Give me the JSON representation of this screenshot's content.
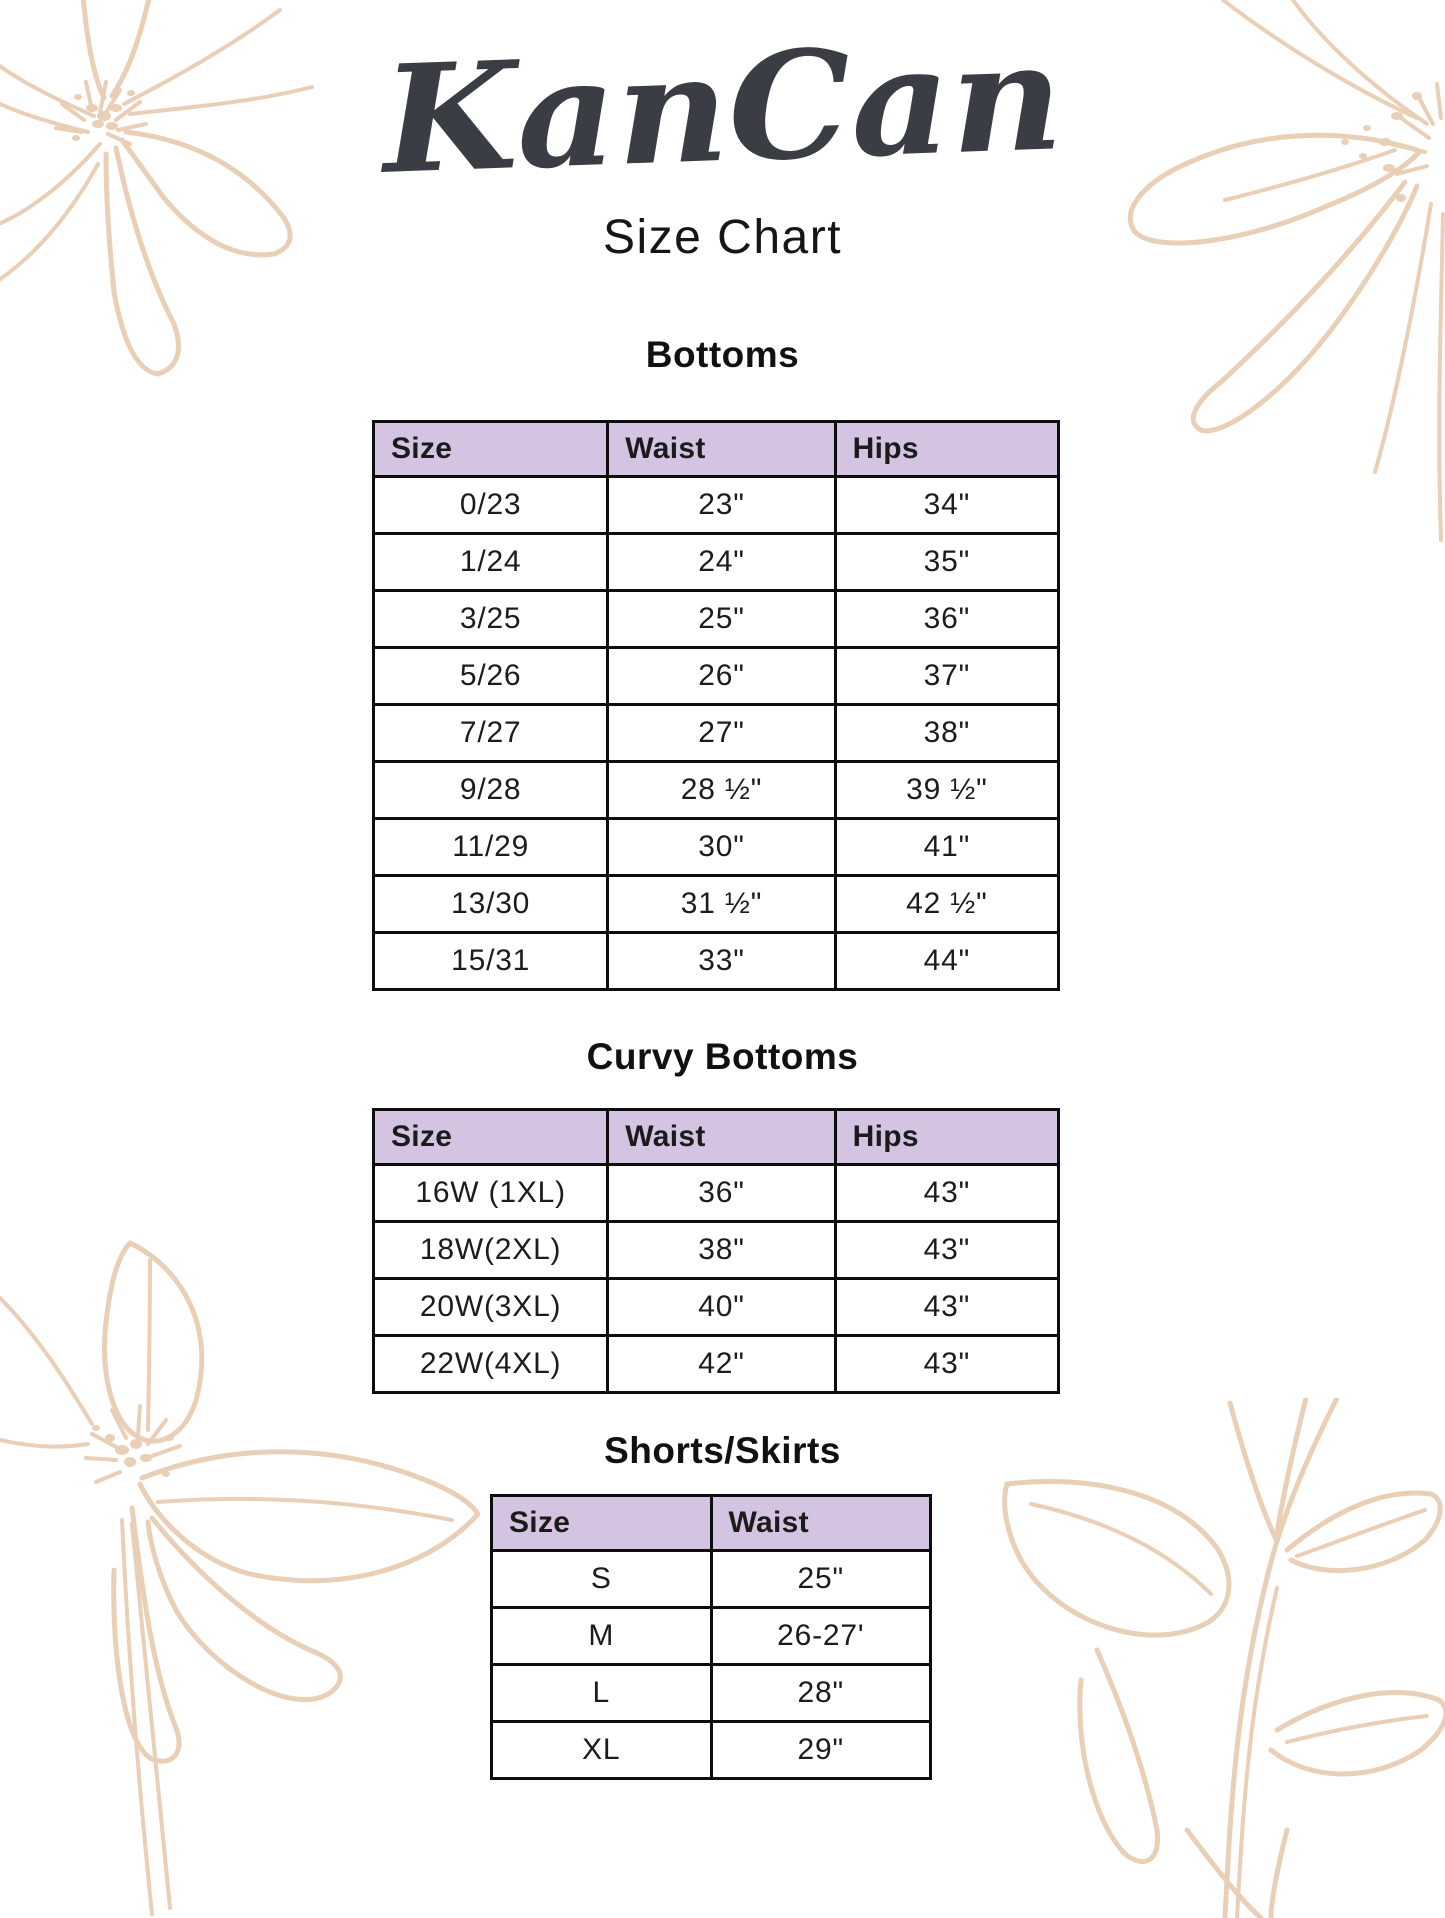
{
  "brand": "KanCan",
  "page_title": "Size Chart",
  "colors": {
    "header_bg": "#d4c4e1",
    "table_border": "#0d0d0d",
    "floral_line": "#e9cfb6",
    "logo_ink": "#3a3d44"
  },
  "tables": [
    {
      "title": "Bottoms",
      "columns": [
        "Size",
        "Waist",
        "Hips"
      ],
      "rows": [
        [
          "0/23",
          "23\"",
          "34\""
        ],
        [
          "1/24",
          "24\"",
          "35\""
        ],
        [
          "3/25",
          "25\"",
          "36\""
        ],
        [
          "5/26",
          "26\"",
          "37\""
        ],
        [
          "7/27",
          "27\"",
          "38\""
        ],
        [
          "9/28",
          "28 ½\"",
          "39 ½\""
        ],
        [
          "11/29",
          "30\"",
          "41\""
        ],
        [
          "13/30",
          "31 ½\"",
          "42 ½\""
        ],
        [
          "15/31",
          "33\"",
          "44\""
        ]
      ]
    },
    {
      "title": "Curvy Bottoms",
      "columns": [
        "Size",
        "Waist",
        "Hips"
      ],
      "rows": [
        [
          "16W (1XL)",
          "36\"",
          "43\""
        ],
        [
          "18W(2XL)",
          "38\"",
          "43\""
        ],
        [
          "20W(3XL)",
          "40\"",
          "43\""
        ],
        [
          "22W(4XL)",
          "42\"",
          "43\""
        ]
      ]
    },
    {
      "title": "Shorts/Skirts",
      "columns": [
        "Size",
        "Waist"
      ],
      "rows": [
        [
          "S",
          "25\""
        ],
        [
          "M",
          "26-27'"
        ],
        [
          "L",
          "28\""
        ],
        [
          "XL",
          "29\""
        ]
      ]
    }
  ]
}
